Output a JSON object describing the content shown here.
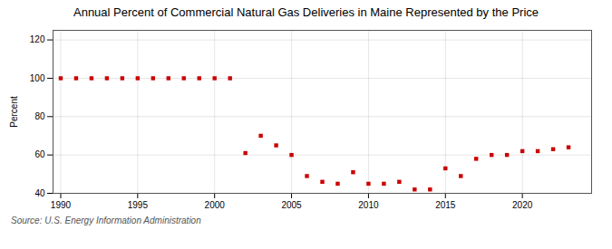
{
  "chart_data": {
    "type": "scatter",
    "title": "Annual Percent of Commercial Natural Gas Deliveries in Maine Represented by the Price",
    "ylabel": "Percent",
    "annotations": [
      "Source: U.S. Energy Information Administration"
    ],
    "x": [
      1990,
      1991,
      1992,
      1993,
      1994,
      1995,
      1996,
      1997,
      1998,
      1999,
      2000,
      2001,
      2002,
      2003,
      2004,
      2005,
      2006,
      2007,
      2008,
      2009,
      2010,
      2011,
      2012,
      2013,
      2014,
      2015,
      2016,
      2017,
      2018,
      2019,
      2020,
      2021,
      2022,
      2023
    ],
    "values": [
      100,
      100,
      100,
      100,
      100,
      100,
      100,
      100,
      100,
      100,
      100,
      100,
      61,
      70,
      65,
      60,
      49,
      46,
      45,
      51,
      45,
      45,
      46,
      42,
      42,
      53,
      49,
      58,
      60,
      60,
      62,
      62,
      63,
      64
    ],
    "color": "#cc0000",
    "marker": "square",
    "xlim": [
      1989.5,
      2024.5
    ],
    "ylim": [
      40,
      125
    ],
    "xticks": [
      1990,
      1995,
      2000,
      2005,
      2010,
      2015,
      2020
    ],
    "yticks": [
      40,
      60,
      80,
      100,
      120
    ],
    "grid": true
  }
}
